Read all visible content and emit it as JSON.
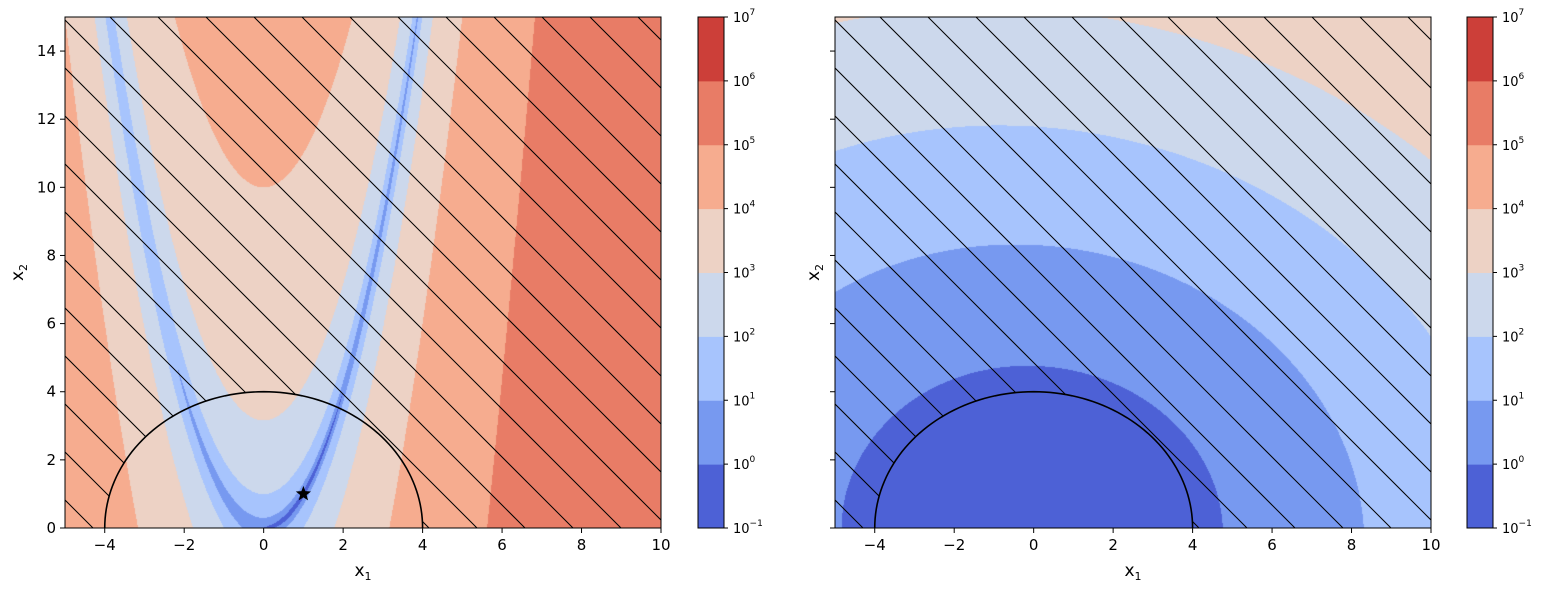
{
  "chart_data": [
    {
      "type": "contour",
      "title": "",
      "xlabel": "x",
      "xlabel_sub": "1",
      "ylabel": "x",
      "ylabel_sub": "2",
      "xlim": [
        -5,
        10
      ],
      "ylim": [
        0,
        15
      ],
      "xticks": [
        -4,
        -2,
        0,
        2,
        4,
        6,
        8,
        10
      ],
      "xtick_labels": [
        "−4",
        "−2",
        "0",
        "2",
        "4",
        "6",
        "8",
        "10"
      ],
      "yticks": [
        0,
        2,
        4,
        6,
        8,
        10,
        12,
        14
      ],
      "ytick_labels": [
        "0",
        "2",
        "4",
        "6",
        "8",
        "10",
        "12",
        "14"
      ],
      "show_ytick_labels": true,
      "function": "rosenbrock: (1 - x1)^2 + 100 (x2 - x1^2)^2",
      "levels_log10": [
        -1,
        0,
        1,
        2,
        3,
        4,
        5,
        6,
        7
      ],
      "constraint_circle": {
        "center": [
          0,
          0
        ],
        "radius": 4
      },
      "hatched_region": "x1^2 + x2^2 > 16 (outside circle, diagonal hatch)",
      "marker": {
        "shape": "star",
        "x": 1,
        "y": 1
      },
      "colorbar": {
        "scale": "log",
        "ticks": [
          "10",
          "10",
          "10",
          "10",
          "10",
          "10",
          "10",
          "10",
          "10"
        ],
        "tick_exponents": [
          "−1",
          "0",
          "1",
          "2",
          "3",
          "4",
          "5",
          "6",
          "7"
        ],
        "colors": [
          "#4d61d6",
          "#7799f0",
          "#a7c4fd",
          "#ccd8ec",
          "#edd2c5",
          "#f6ac8f",
          "#e87c66",
          "#cc3f39"
        ]
      }
    },
    {
      "type": "contour",
      "title": "",
      "xlabel": "x",
      "xlabel_sub": "1",
      "ylabel": "x",
      "ylabel_sub": "2",
      "xlim": [
        -5,
        10
      ],
      "ylim": [
        0,
        15
      ],
      "xticks": [
        -4,
        -2,
        0,
        2,
        4,
        6,
        8,
        10
      ],
      "xtick_labels": [
        "−4",
        "−2",
        "0",
        "2",
        "4",
        "6",
        "8",
        "10"
      ],
      "yticks": [
        0,
        2,
        4,
        6,
        8,
        10,
        12,
        14
      ],
      "ytick_labels": [],
      "show_ytick_labels": false,
      "function": "approximately radial: grows with distance from origin, faster toward upper-right",
      "levels_log10": [
        -1,
        0,
        1,
        2,
        3,
        4,
        5,
        6,
        7
      ],
      "constraint_circle": {
        "center": [
          0,
          0
        ],
        "radius": 4
      },
      "hatched_region": "x1^2 + x2^2 > 16 (outside circle, diagonal hatch)",
      "colorbar": {
        "scale": "log",
        "ticks": [
          "10",
          "10",
          "10",
          "10",
          "10",
          "10",
          "10",
          "10",
          "10"
        ],
        "tick_exponents": [
          "−1",
          "0",
          "1",
          "2",
          "3",
          "4",
          "5",
          "6",
          "7"
        ],
        "colors": [
          "#4d61d6",
          "#7799f0",
          "#a7c4fd",
          "#ccd8ec",
          "#edd2c5",
          "#f6ac8f",
          "#e87c66",
          "#cc3f39"
        ]
      }
    }
  ]
}
